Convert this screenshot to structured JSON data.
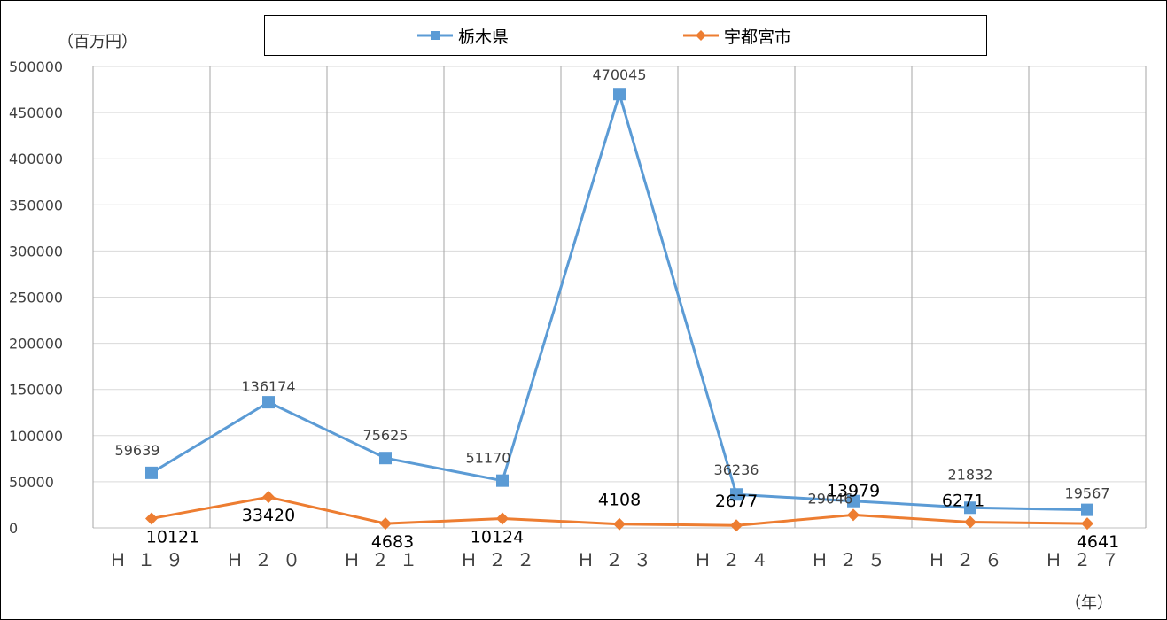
{
  "chart_data": {
    "type": "line",
    "y_unit_label": "（百万円）",
    "x_unit_label": "（年）",
    "categories": [
      "Ｈ１９",
      "Ｈ２０",
      "Ｈ２１",
      "Ｈ２２",
      "Ｈ２３",
      "Ｈ２４",
      "Ｈ２５",
      "Ｈ２６",
      "Ｈ２７"
    ],
    "ylim": [
      0,
      500000
    ],
    "y_ticks": [
      "0",
      "50000",
      "100000",
      "150000",
      "200000",
      "250000",
      "300000",
      "350000",
      "400000",
      "450000",
      "500000"
    ],
    "y_tick_values": [
      0,
      50000,
      100000,
      150000,
      200000,
      250000,
      300000,
      350000,
      400000,
      450000,
      500000
    ],
    "grid": {
      "horizontal": true,
      "vertical": true
    },
    "legend_position": "top",
    "series": [
      {
        "name": "栃木県",
        "color": "#5B9BD5",
        "marker": "square",
        "values": [
          59639,
          136174,
          75625,
          51170,
          470045,
          36236,
          29046,
          21832,
          19567
        ],
        "labels": [
          "59639",
          "136174",
          "75625",
          "51170",
          "470045",
          "36236",
          "29046",
          "21832",
          "19567"
        ]
      },
      {
        "name": "宇都宮市",
        "color": "#ED7D31",
        "marker": "diamond",
        "values": [
          10121,
          33420,
          4683,
          10124,
          4108,
          2677,
          13979,
          6271,
          4641
        ],
        "labels": [
          "10121",
          "33420",
          "4683",
          "10124",
          "4108",
          "2677",
          "13979",
          "6271",
          "4641"
        ]
      }
    ]
  }
}
